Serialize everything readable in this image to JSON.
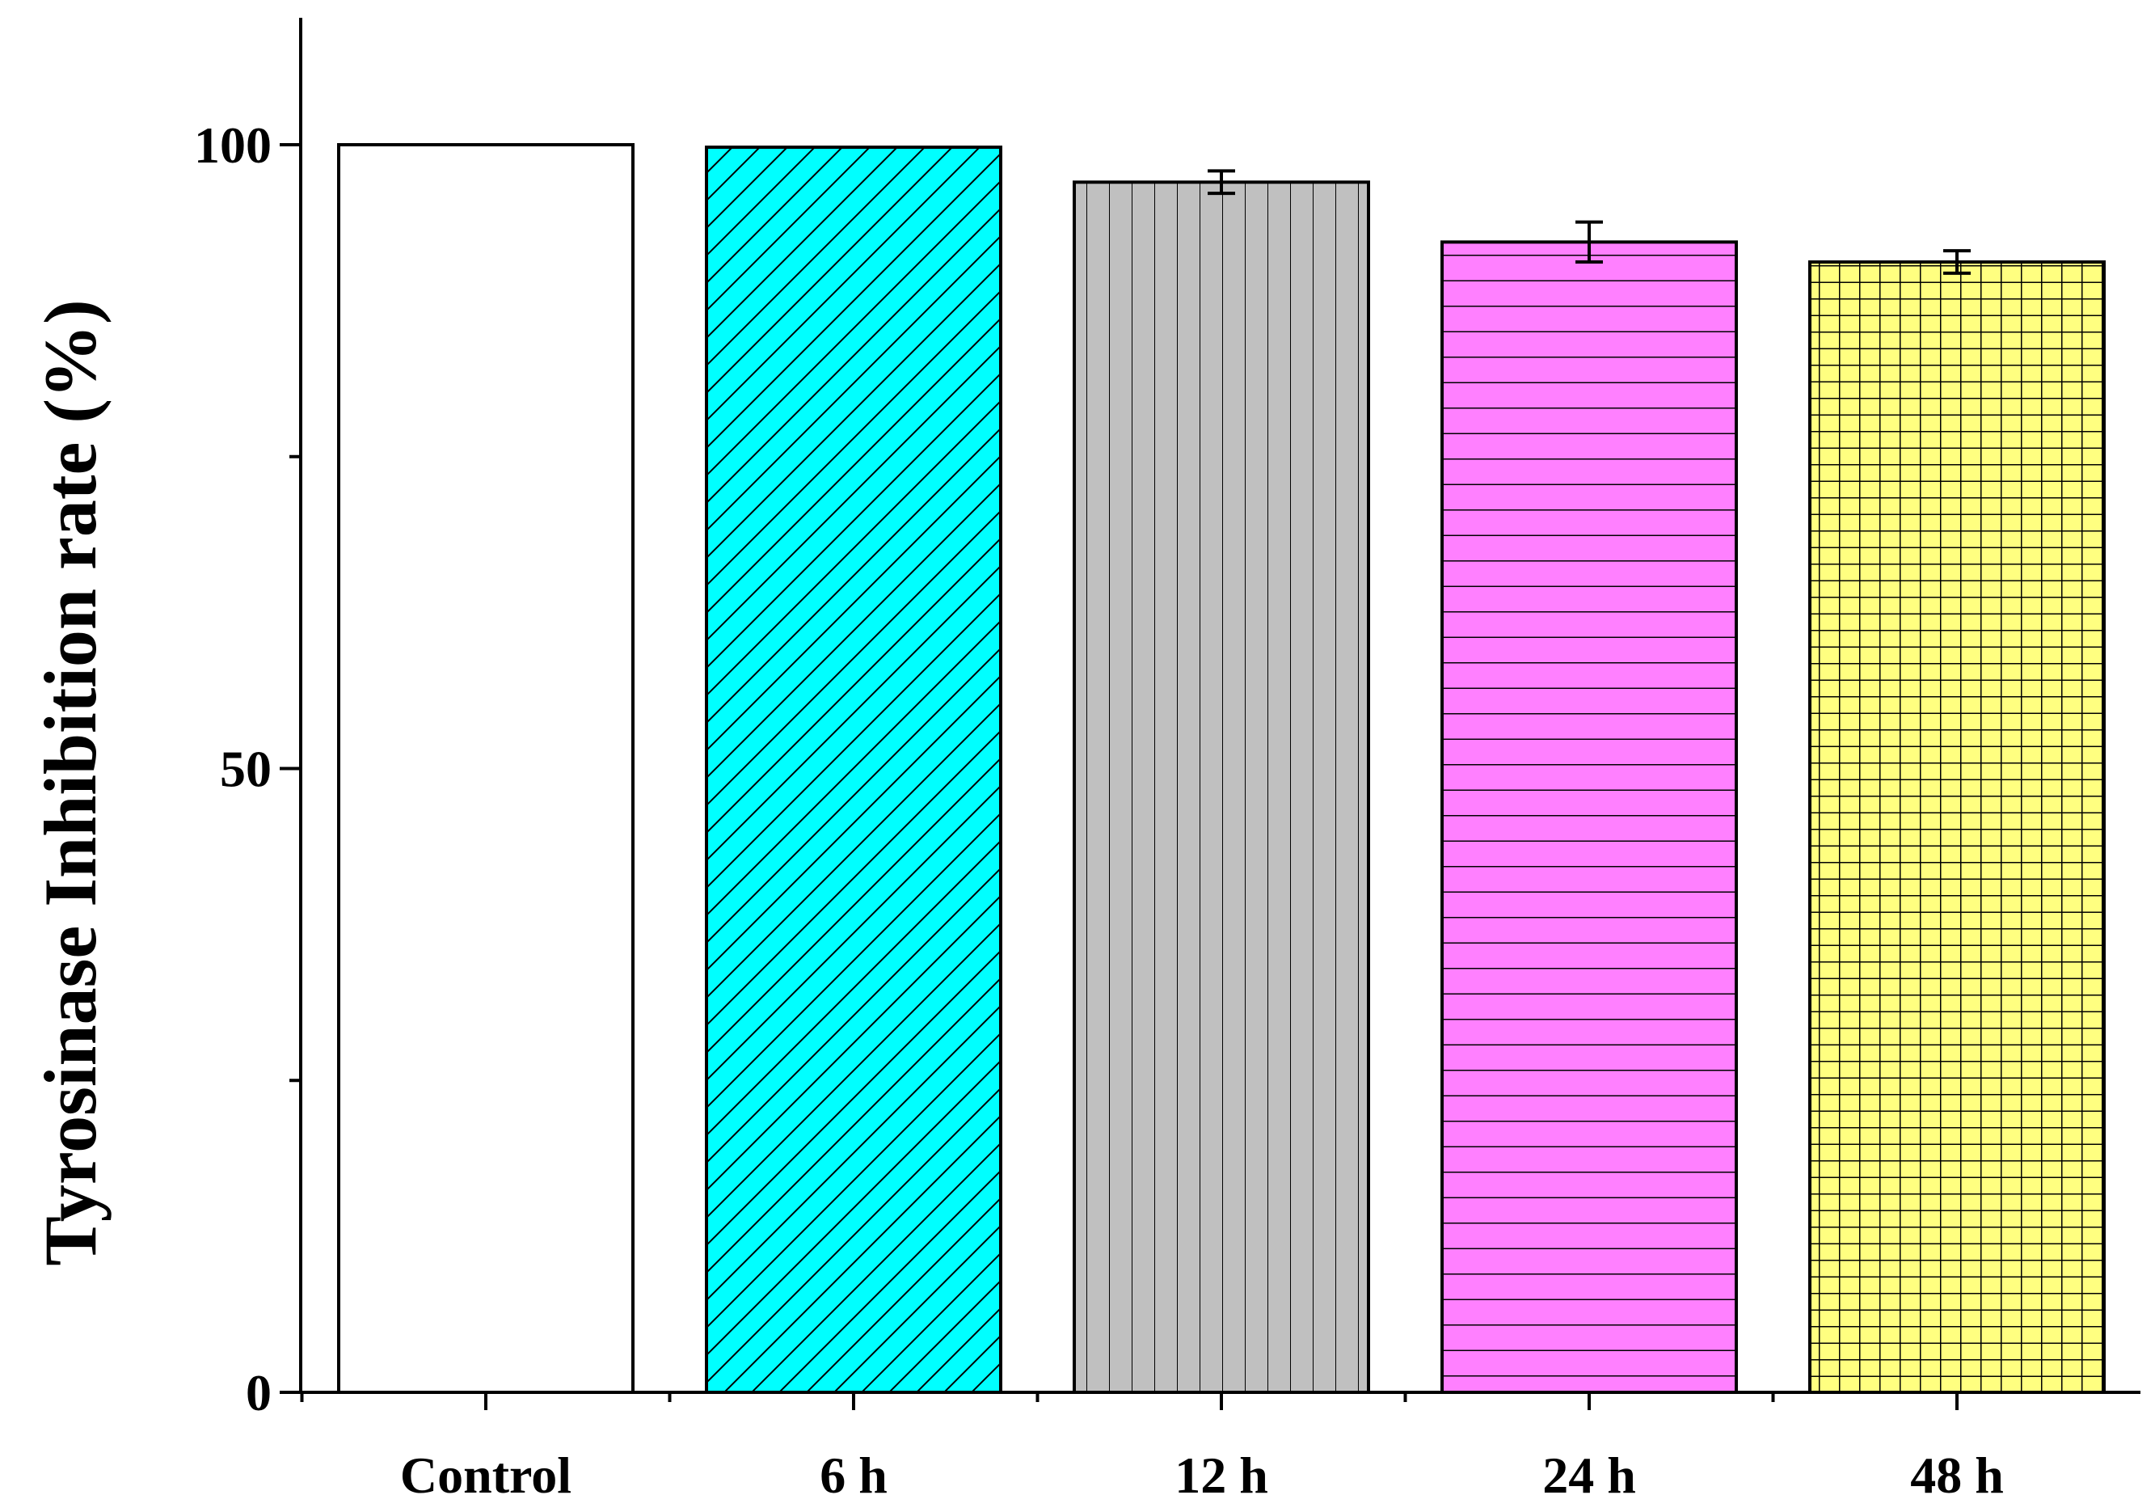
{
  "chart_data": {
    "type": "bar",
    "title": "",
    "xlabel": "",
    "ylabel": "Tyrosinase Inhibition rate (%)",
    "ylim": [
      0,
      110
    ],
    "y_major_ticks": [
      0,
      50,
      100
    ],
    "y_minor_ticks": [
      25,
      75
    ],
    "categories": [
      "Control",
      "6 h",
      "12 h",
      "24 h",
      "48 h"
    ],
    "values": [
      100,
      99.8,
      97,
      92.2,
      90.6
    ],
    "errors": [
      0,
      0,
      0.9,
      1.6,
      0.9
    ],
    "fills": [
      "#ffffff",
      "#00ffff",
      "#c0c0c0",
      "#ff80ff",
      "#ffff80"
    ],
    "patterns": [
      "none",
      "diagonal",
      "vertical",
      "horizontal",
      "grid"
    ]
  }
}
